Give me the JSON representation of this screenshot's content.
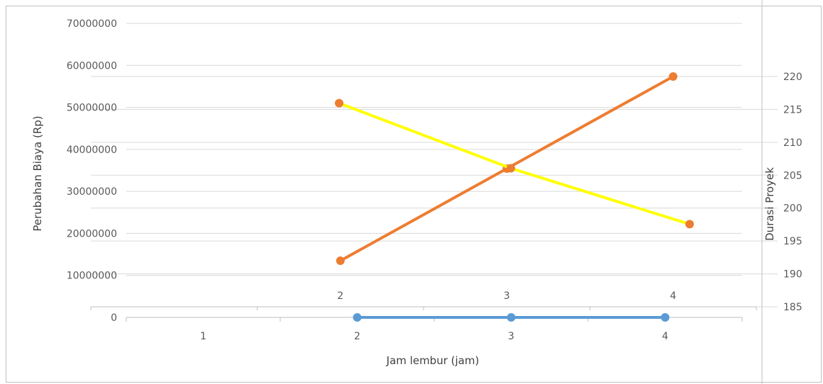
{
  "chart_data": {
    "type": "line",
    "xlabel": "Jam lembur (jam)",
    "ylabel": "Perubahan Biaya (Rp)",
    "y2label": "Durasi Proyek",
    "grid": true,
    "primary_axis": {
      "ylim": [
        0,
        70000000
      ],
      "ticks": [
        "0",
        "10000000",
        "20000000",
        "30000000",
        "40000000",
        "50000000",
        "60000000",
        "70000000"
      ]
    },
    "secondary_axis": {
      "ylim": [
        183.5,
        220
      ],
      "ticks": [
        "185",
        "190",
        "195",
        "200",
        "205",
        "210",
        "215",
        "220"
      ]
    },
    "x_categories": [
      "1",
      "2",
      "3",
      "4"
    ],
    "secondary_x_labels": [
      "2",
      "3",
      "4"
    ],
    "series": [
      {
        "color": "#5B9BD5",
        "axis": "primary",
        "x": [
          2,
          3,
          4
        ],
        "values": [
          0,
          0,
          0
        ]
      },
      {
        "color": "#ED7D31",
        "axis": "secondary",
        "x": [
          2,
          3,
          4
        ],
        "values": [
          192,
          206,
          220
        ]
      },
      {
        "color": "#FFFF00",
        "axis": "primary",
        "marker_color": "#ED7D31",
        "x": [
          2,
          3,
          4
        ],
        "values": [
          51000000,
          35500000,
          22200000
        ]
      }
    ]
  }
}
